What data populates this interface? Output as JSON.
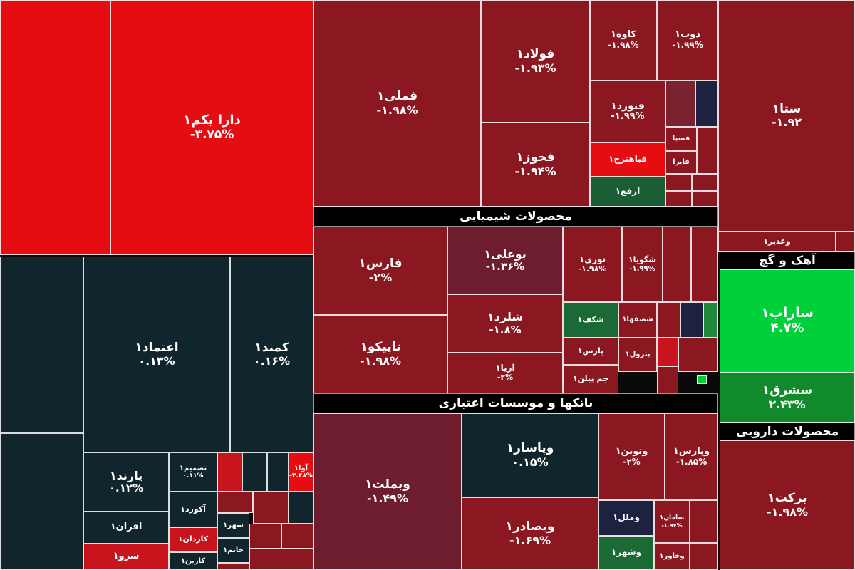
{
  "colors": {
    "up_strong": "#00d03a",
    "up": "#1f8a3c",
    "up_mild": "#1b6a36",
    "neutral": "#10262c",
    "down_mild": "#6e1d2e",
    "down": "#8a1820",
    "down_strong": "#e80f12"
  },
  "chart_data": {
    "type": "treemap",
    "sectors": [
      {
        "name": "محصولات شیمیایی"
      },
      {
        "name": "بانکها و موسسات اعتباری"
      },
      {
        "name": "آهک و گچ"
      },
      {
        "name": "محصولات دارویی"
      }
    ],
    "tiles": [
      {
        "symbol": "دارا یکم۱",
        "change": "-۳.۷۵%",
        "value": -3.75,
        "color": "#e50d12"
      },
      {
        "symbol": "",
        "change": "",
        "value": null,
        "color": "#e50d12"
      },
      {
        "symbol": "فملی۱",
        "change": "-۱.۹۸%",
        "value": -1.98,
        "color": "#8b1820"
      },
      {
        "symbol": "فولاد۱",
        "change": "-۱.۹۳%",
        "value": -1.93,
        "color": "#8b1820"
      },
      {
        "symbol": "فخوز۱",
        "change": "-۱.۹۴%",
        "value": -1.94,
        "color": "#8b1820"
      },
      {
        "symbol": "کاوه۱",
        "change": "-۱.۹۸%",
        "value": -1.98,
        "color": "#8b1820"
      },
      {
        "symbol": "ذوب۱",
        "change": "-۱.۹۹%",
        "value": -1.99,
        "color": "#8b1820"
      },
      {
        "symbol": "فنورد۱",
        "change": "-۱.۹۹%",
        "value": -1.99,
        "color": "#8b1820"
      },
      {
        "symbol": "فباهنرح۱",
        "change": "",
        "value": null,
        "color": "#e50d12"
      },
      {
        "symbol": "ارفع۱",
        "change": "",
        "value": null,
        "color": "#1b5e35"
      },
      {
        "symbol": "فسپا",
        "change": "",
        "value": null,
        "color": "#8b1820"
      },
      {
        "symbol": "فایرا",
        "change": "",
        "value": null,
        "color": "#8b1820"
      },
      {
        "symbol": "ستا۱",
        "change": "-۱.۹۲",
        "value": -1.92,
        "color": "#8b1820"
      },
      {
        "symbol": "وغدیر۱",
        "change": "",
        "value": null,
        "color": "#8b1820"
      },
      {
        "symbol": "فارس۱",
        "change": "-۲%",
        "value": -2.0,
        "color": "#8b1820"
      },
      {
        "symbol": "تاپیکو۱",
        "change": "-۱.۹۸%",
        "value": -1.98,
        "color": "#8b1820"
      },
      {
        "symbol": "بوعلی۱",
        "change": "-۱.۳۶%",
        "value": -1.36,
        "color": "#6e1d2e"
      },
      {
        "symbol": "شلرد۱",
        "change": "-۱.۸%",
        "value": -1.8,
        "color": "#8b1820"
      },
      {
        "symbol": "آریا۱",
        "change": "-۲%",
        "value": -2.0,
        "color": "#8b1820"
      },
      {
        "symbol": "نوری۱",
        "change": "-۱.۹۸%",
        "value": -1.98,
        "color": "#8b1820"
      },
      {
        "symbol": "شگویا۱",
        "change": "-۱.۹۹%",
        "value": -1.99,
        "color": "#8b1820"
      },
      {
        "symbol": "شکف۱",
        "change": "",
        "value": null,
        "color": "#1b6a36"
      },
      {
        "symbol": "شصفها۱",
        "change": "",
        "value": null,
        "color": "#8b1820"
      },
      {
        "symbol": "پارس۱",
        "change": "",
        "value": null,
        "color": "#8b1820"
      },
      {
        "symbol": "پترول۱",
        "change": "",
        "value": null,
        "color": "#8b1820"
      },
      {
        "symbol": "جم پیلن۱",
        "change": "",
        "value": null,
        "color": "#8b1820"
      },
      {
        "symbol": "ساراب۱",
        "change": "۴.۷%",
        "value": 4.7,
        "color": "#00d03a"
      },
      {
        "symbol": "سشرق۱",
        "change": "۲.۴۳%",
        "value": 2.43,
        "color": "#118a2c"
      },
      {
        "symbol": "اعتماد۱",
        "change": "۰.۱۳%",
        "value": 0.13,
        "color": "#10262c"
      },
      {
        "symbol": "کمند۱",
        "change": "۰.۱۶%",
        "value": 0.16,
        "color": "#10262c"
      },
      {
        "symbol": "پارند۱",
        "change": "۰.۱۲%",
        "value": 0.12,
        "color": "#10262c"
      },
      {
        "symbol": "افران۱",
        "change": "",
        "value": null,
        "color": "#10262c"
      },
      {
        "symbol": "سرو۱",
        "change": "",
        "value": null,
        "color": "#c8141c"
      },
      {
        "symbol": "تصمیم۱",
        "change": "۰.۱۱%",
        "value": 0.11,
        "color": "#10262c"
      },
      {
        "symbol": "آکورد۱",
        "change": "",
        "value": null,
        "color": "#10262c"
      },
      {
        "symbol": "کاردان۱",
        "change": "",
        "value": null,
        "color": "#c8141c"
      },
      {
        "symbol": "کارین۱",
        "change": "",
        "value": null,
        "color": "#10262c"
      },
      {
        "symbol": "سهر۱",
        "change": "",
        "value": null,
        "color": "#10262c"
      },
      {
        "symbol": "خاتم۱",
        "change": "",
        "value": null,
        "color": "#10262c"
      },
      {
        "symbol": "آوا۱",
        "change": "-۲.۴۸%",
        "value": -2.48,
        "color": "#e50d12"
      },
      {
        "symbol": "وبملت۱",
        "change": "-۱.۴۹%",
        "value": -1.49,
        "color": "#6e1d2e"
      },
      {
        "symbol": "وپاسار۱",
        "change": "۰.۱۵%",
        "value": 0.15,
        "color": "#10262c"
      },
      {
        "symbol": "وبصادر۱",
        "change": "-۱.۶۹%",
        "value": -1.69,
        "color": "#8b1820"
      },
      {
        "symbol": "وتوین۱",
        "change": "-۲%",
        "value": -2.0,
        "color": "#8b1820"
      },
      {
        "symbol": "وپارس۱",
        "change": "-۱.۸۵%",
        "value": -1.85,
        "color": "#8b1820"
      },
      {
        "symbol": "وملل۱",
        "change": "",
        "value": null,
        "color": "#1d2240"
      },
      {
        "symbol": "سامان۱",
        "change": "-۱.۹۷%",
        "value": -1.97,
        "color": "#8b1820"
      },
      {
        "symbol": "وشهر۱",
        "change": "",
        "value": null,
        "color": "#1b6a36"
      },
      {
        "symbol": "وخاور۱",
        "change": "",
        "value": null,
        "color": "#8b1820"
      },
      {
        "symbol": "برکت۱",
        "change": "-۱.۹۸%",
        "value": -1.98,
        "color": "#8b1820"
      }
    ]
  }
}
